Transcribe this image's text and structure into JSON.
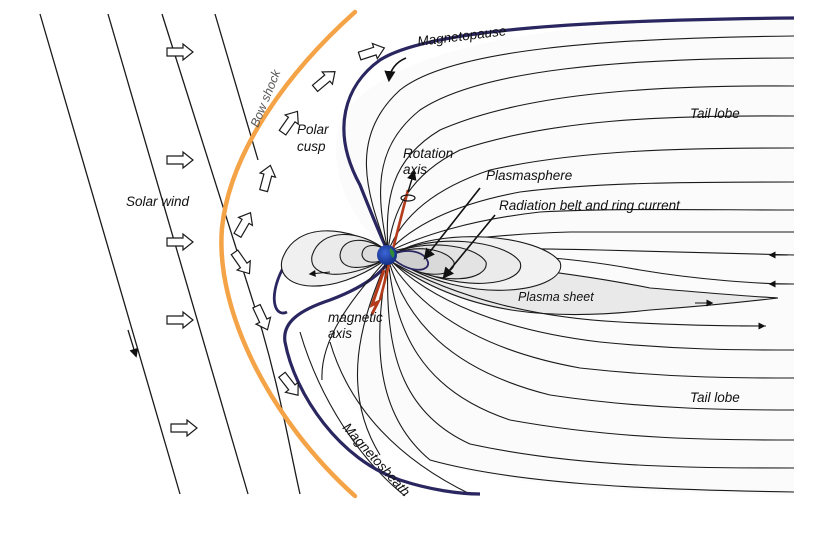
{
  "labels": {
    "magnetopause": "Magnetopause",
    "bow_shock": "Bow shock",
    "polar_cusp_line1": "Polar",
    "polar_cusp_line2": "cusp",
    "tail_lobe_top": "Tail lobe",
    "rotation_axis_line1": "Rotation",
    "rotation_axis_line2": "axis",
    "plasmasphere": "Plasmasphere",
    "radiation_belt": "Radiation belt and ring current",
    "solar_wind": "Solar wind",
    "plasma_sheet": "Plasma sheet",
    "magnetic_axis_line1": "magnetic",
    "magnetic_axis_line2": "axis",
    "tail_lobe_bottom": "Tail lobe",
    "magnetosheath": "Magnetosheath"
  },
  "colors": {
    "bow_shock": "#f5a347",
    "magnetopause": "#2a2660",
    "earth": "#1b3ea8",
    "earth_land": "#2f8a3a",
    "rotation_axis": "#b33a1a",
    "field_line": "#1a1a1a",
    "region_fill": "#efefef"
  }
}
